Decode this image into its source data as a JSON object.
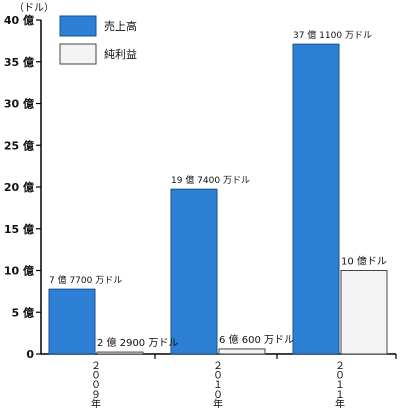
{
  "chart_data": {
    "type": "bar",
    "unit_label": "（ドル）",
    "categories": [
      "2009年",
      "2010年",
      "2011年"
    ],
    "x_tick_labels": [
      "２００９年",
      "２０１０年",
      "２０１１年"
    ],
    "ylim": [
      0,
      40
    ],
    "y_ticks": [
      {
        "value": 0,
        "label": "0"
      },
      {
        "value": 5,
        "label": "5 億"
      },
      {
        "value": 10,
        "label": "10 億"
      },
      {
        "value": 15,
        "label": "15 億"
      },
      {
        "value": 20,
        "label": "20 億"
      },
      {
        "value": 25,
        "label": "25 億"
      },
      {
        "value": 30,
        "label": "30 億"
      },
      {
        "value": 35,
        "label": "35 億"
      },
      {
        "value": 40,
        "label": "40 億"
      }
    ],
    "grid": false,
    "legend_position": "top-left",
    "series": [
      {
        "name": "売上高",
        "color": "#2e7fd6",
        "values": [
          7.77,
          19.74,
          37.11
        ],
        "data_labels": [
          "7 億 7700 万ドル",
          "19 億 7400 万ドル",
          "37 億 1100 万ドル"
        ]
      },
      {
        "name": "純利益",
        "color": "#f4f4f4",
        "values": [
          0.229,
          0.606,
          10
        ],
        "data_labels": [
          "2 億 2900 万ドル",
          "6 億 600 万ドル",
          "10 億ドル"
        ]
      }
    ]
  }
}
